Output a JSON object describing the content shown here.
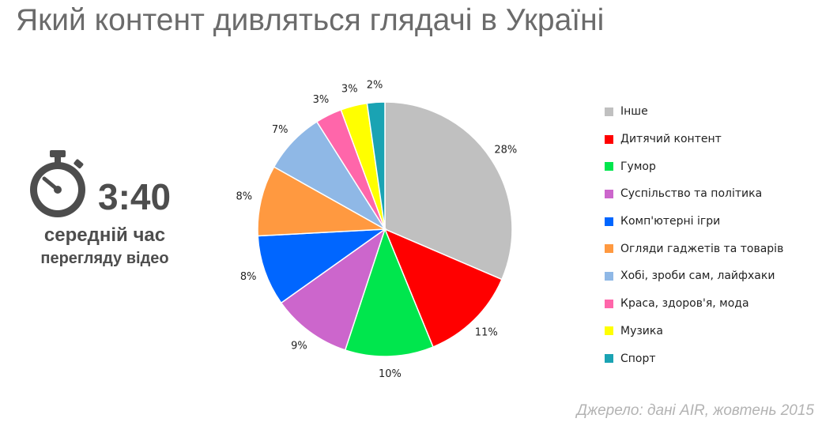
{
  "title": "Який контент дивляться глядачі в Україні",
  "stat": {
    "value": "3:40",
    "line1": "середній час",
    "line2": "перегляду відео",
    "icon": "stopwatch-icon"
  },
  "source": "Джерело: дані AIR, жовтень 2015",
  "chart_data": {
    "type": "pie",
    "title": "",
    "legend_position": "right",
    "slices": [
      {
        "label": "Інше",
        "value": 28,
        "display": "28%",
        "color": "#c0c0c0"
      },
      {
        "label": "Дитячий контент",
        "value": 11,
        "display": "11%",
        "color": "#ff0000"
      },
      {
        "label": "Гумор",
        "value": 10,
        "display": "10%",
        "color": "#00e64d"
      },
      {
        "label": "Суспільство та політика",
        "value": 9,
        "display": "9%",
        "color": "#cc66cc"
      },
      {
        "label": "Комп'ютерні ігри",
        "value": 8,
        "display": "8%",
        "color": "#0066ff"
      },
      {
        "label": "Огляди гаджетів та товарів",
        "value": 8,
        "display": "8%",
        "color": "#ff9940"
      },
      {
        "label": "Хобі, зроби сам, лайфхаки",
        "value": 7,
        "display": "7%",
        "color": "#8fb8e6"
      },
      {
        "label": "Краса, здоров'я, мода",
        "value": 3,
        "display": "3%",
        "color": "#ff66aa"
      },
      {
        "label": "Музика",
        "value": 3,
        "display": "3%",
        "color": "#ffff00"
      },
      {
        "label": "Спорт",
        "value": 2,
        "display": "2%",
        "color": "#1aa3b3"
      }
    ]
  }
}
